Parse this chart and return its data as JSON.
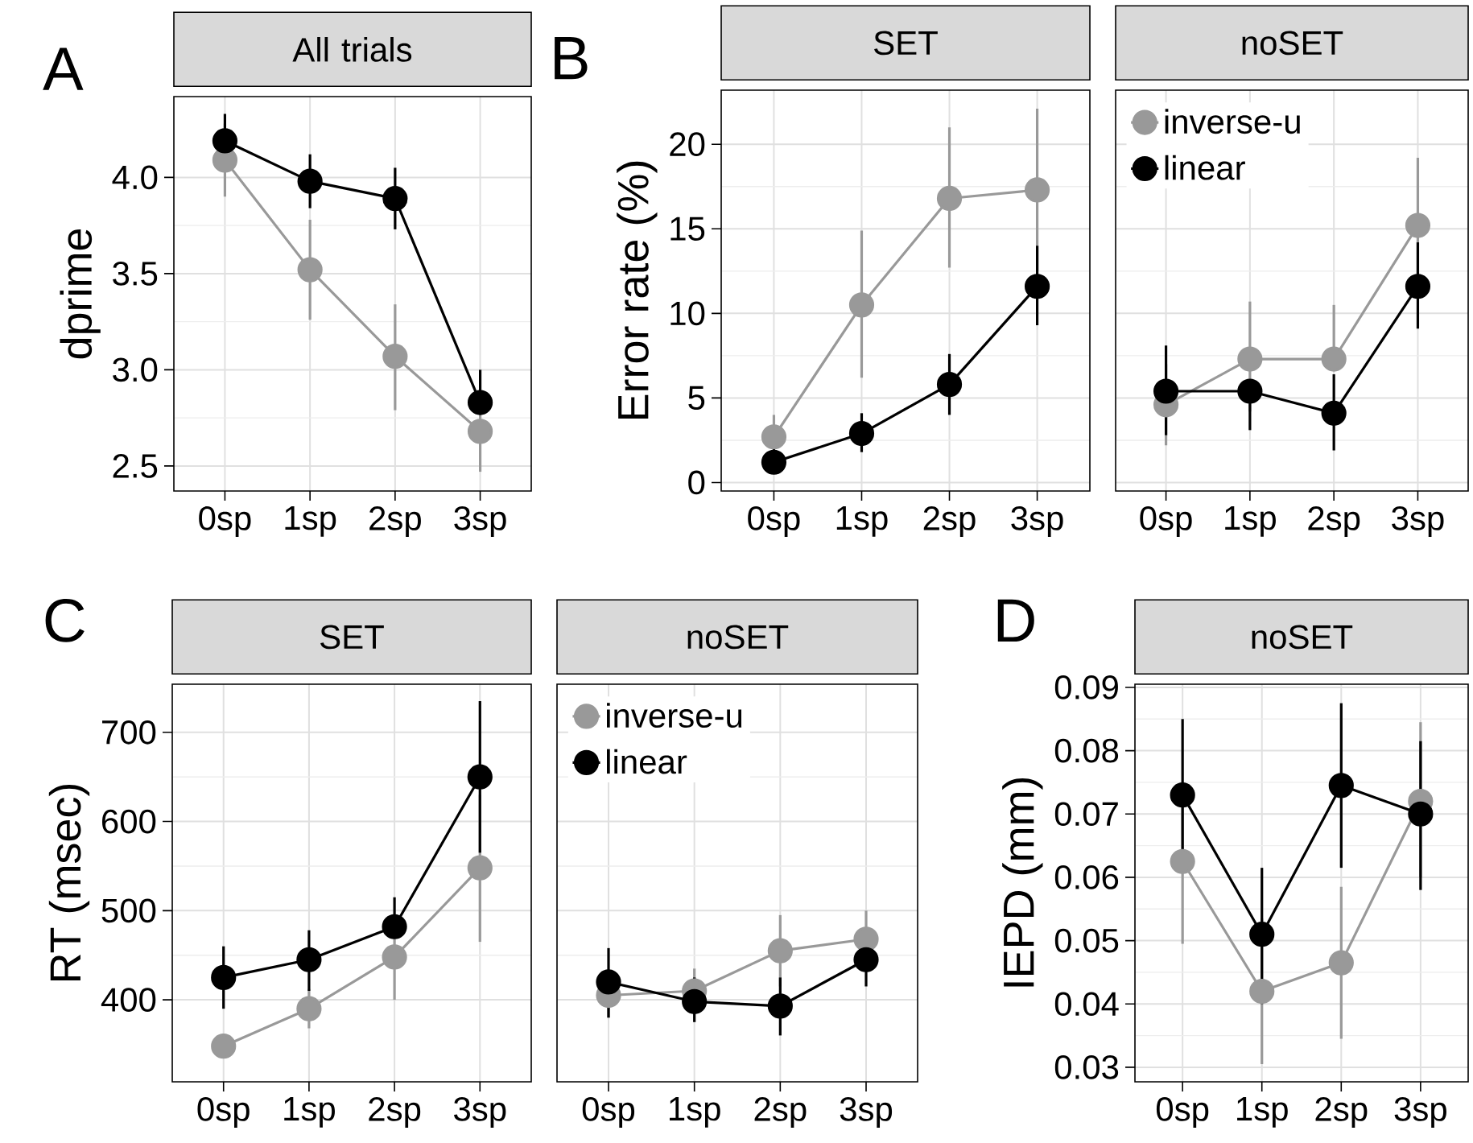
{
  "chart_data": [
    {
      "type": "line",
      "title": "All trials",
      "ylabel": "dprime",
      "annotations": [
        "A"
      ],
      "categories": [
        "0sp",
        "1sp",
        "2sp",
        "3sp"
      ],
      "ylim": [
        2.37,
        4.42
      ],
      "yticks": [
        {
          "value": 2.5,
          "label": "2.5"
        },
        {
          "value": 3.0,
          "label": "3.0"
        },
        {
          "value": 3.5,
          "label": "3.5"
        },
        {
          "value": 4.0,
          "label": "4.0"
        }
      ],
      "grid": true,
      "marker": "circle",
      "line_style": "solid",
      "series": [
        {
          "color": "#999999",
          "values": [
            4.09,
            3.52,
            3.07,
            2.68
          ],
          "errors": [
            [
              3.9,
              4.28
            ],
            [
              3.26,
              3.78
            ],
            [
              2.79,
              3.34
            ],
            [
              2.47,
              2.88
            ]
          ]
        },
        {
          "color": "#000000",
          "values": [
            4.19,
            3.98,
            3.89,
            2.83
          ],
          "errors": [
            [
              4.05,
              4.33
            ],
            [
              3.84,
              4.12
            ],
            [
              3.73,
              4.05
            ],
            [
              2.83,
              3.0
            ]
          ]
        }
      ]
    },
    {
      "type": "line",
      "title": "SET",
      "ylabel": "Error rate (%)",
      "annotations": [
        "B"
      ],
      "categories": [
        "0sp",
        "1sp",
        "2sp",
        "3sp"
      ],
      "ylim": [
        -0.5,
        23.2
      ],
      "yticks": [
        0,
        5,
        10,
        15,
        20
      ],
      "grid": true,
      "marker": "circle",
      "line_style": "solid",
      "series": [
        {
          "color": "#999999",
          "values": [
            2.7,
            10.5,
            16.8,
            17.3
          ],
          "errors": [
            [
              2.7,
              4.0
            ],
            [
              6.2,
              14.9
            ],
            [
              12.7,
              21.0
            ],
            [
              12.5,
              22.1
            ]
          ]
        },
        {
          "color": "#000000",
          "values": [
            1.2,
            2.9,
            5.8,
            11.6
          ],
          "errors": [
            [
              0.5,
              2.1
            ],
            [
              1.8,
              4.1
            ],
            [
              4.0,
              7.6
            ],
            [
              9.3,
              14.0
            ]
          ]
        }
      ]
    },
    {
      "type": "line",
      "title": "noSET",
      "categories": [
        "0sp",
        "1sp",
        "2sp",
        "3sp"
      ],
      "ylim": [
        -0.5,
        23.2
      ],
      "yticks": [
        0,
        5,
        10,
        15,
        20
      ],
      "tick_labels": "x",
      "grid": true,
      "marker": "circle",
      "line_style": "solid",
      "legend": "top left",
      "series": [
        {
          "name": "inverse-u",
          "color": "#999999",
          "values": [
            4.6,
            7.3,
            7.3,
            15.2
          ],
          "errors": [
            [
              2.2,
              7.0
            ],
            [
              4.2,
              10.7
            ],
            [
              7.3,
              10.5
            ],
            [
              11.0,
              19.2
            ]
          ]
        },
        {
          "name": "linear",
          "color": "#000000",
          "values": [
            5.4,
            5.4,
            4.1,
            11.6
          ],
          "errors": [
            [
              2.8,
              8.1
            ],
            [
              3.1,
              5.4
            ],
            [
              1.9,
              6.4
            ],
            [
              9.1,
              14.2
            ]
          ]
        }
      ]
    },
    {
      "type": "line",
      "title": "SET",
      "ylabel": "RT (msec)",
      "annotations": [
        "C"
      ],
      "categories": [
        "0sp",
        "1sp",
        "2sp",
        "3sp"
      ],
      "ylim": [
        308,
        754
      ],
      "yticks": [
        400,
        500,
        600,
        700
      ],
      "grid": true,
      "marker": "circle",
      "line_style": "solid",
      "series": [
        {
          "color": "#999999",
          "values": [
            348,
            390,
            448,
            548
          ],
          "errors": [
            [
              335,
              362
            ],
            [
              368,
              412
            ],
            [
              400,
              495
            ],
            [
              465,
              630
            ]
          ]
        },
        {
          "color": "#000000",
          "values": [
            425,
            445,
            482,
            650
          ],
          "errors": [
            [
              390,
              460
            ],
            [
              410,
              478
            ],
            [
              482,
              515
            ],
            [
              565,
              735
            ]
          ]
        }
      ]
    },
    {
      "type": "line",
      "title": "noSET",
      "categories": [
        "0sp",
        "1sp",
        "2sp",
        "3sp"
      ],
      "ylim": [
        308,
        754
      ],
      "yticks": [
        400,
        500,
        600,
        700
      ],
      "tick_labels": "x",
      "grid": true,
      "marker": "circle",
      "line_style": "solid",
      "legend": "top left",
      "series": [
        {
          "name": "inverse-u",
          "color": "#999999",
          "values": [
            405,
            410,
            455,
            468
          ],
          "errors": [
            [
              380,
              430
            ],
            [
              385,
              435
            ],
            [
              415,
              495
            ],
            [
              435,
              500
            ]
          ]
        },
        {
          "name": "linear",
          "color": "#000000",
          "values": [
            420,
            398,
            393,
            445
          ],
          "errors": [
            [
              380,
              458
            ],
            [
              375,
              425
            ],
            [
              360,
              425
            ],
            [
              415,
              445
            ]
          ]
        }
      ]
    },
    {
      "type": "line",
      "title": "noSET",
      "ylabel": "IEPD (mm)",
      "annotations": [
        "D"
      ],
      "categories": [
        "0sp",
        "1sp",
        "2sp",
        "3sp"
      ],
      "ylim": [
        0.0277,
        0.0905
      ],
      "yticks": [
        0.03,
        0.04,
        0.05,
        0.06,
        0.07,
        0.08,
        0.09
      ],
      "grid": true,
      "marker": "circle",
      "line_style": "solid",
      "series": [
        {
          "color": "#999999",
          "values": [
            0.0625,
            0.042,
            0.0465,
            0.072
          ],
          "errors": [
            [
              0.0495,
              0.075
            ],
            [
              0.0305,
              0.0535
            ],
            [
              0.0345,
              0.0585
            ],
            [
              0.06,
              0.0845
            ]
          ]
        },
        {
          "color": "#000000",
          "values": [
            0.073,
            0.051,
            0.0745,
            0.07
          ],
          "errors": [
            [
              0.061,
              0.085
            ],
            [
              0.04,
              0.0615
            ],
            [
              0.0615,
              0.0875
            ],
            [
              0.058,
              0.0815
            ]
          ]
        }
      ]
    }
  ]
}
